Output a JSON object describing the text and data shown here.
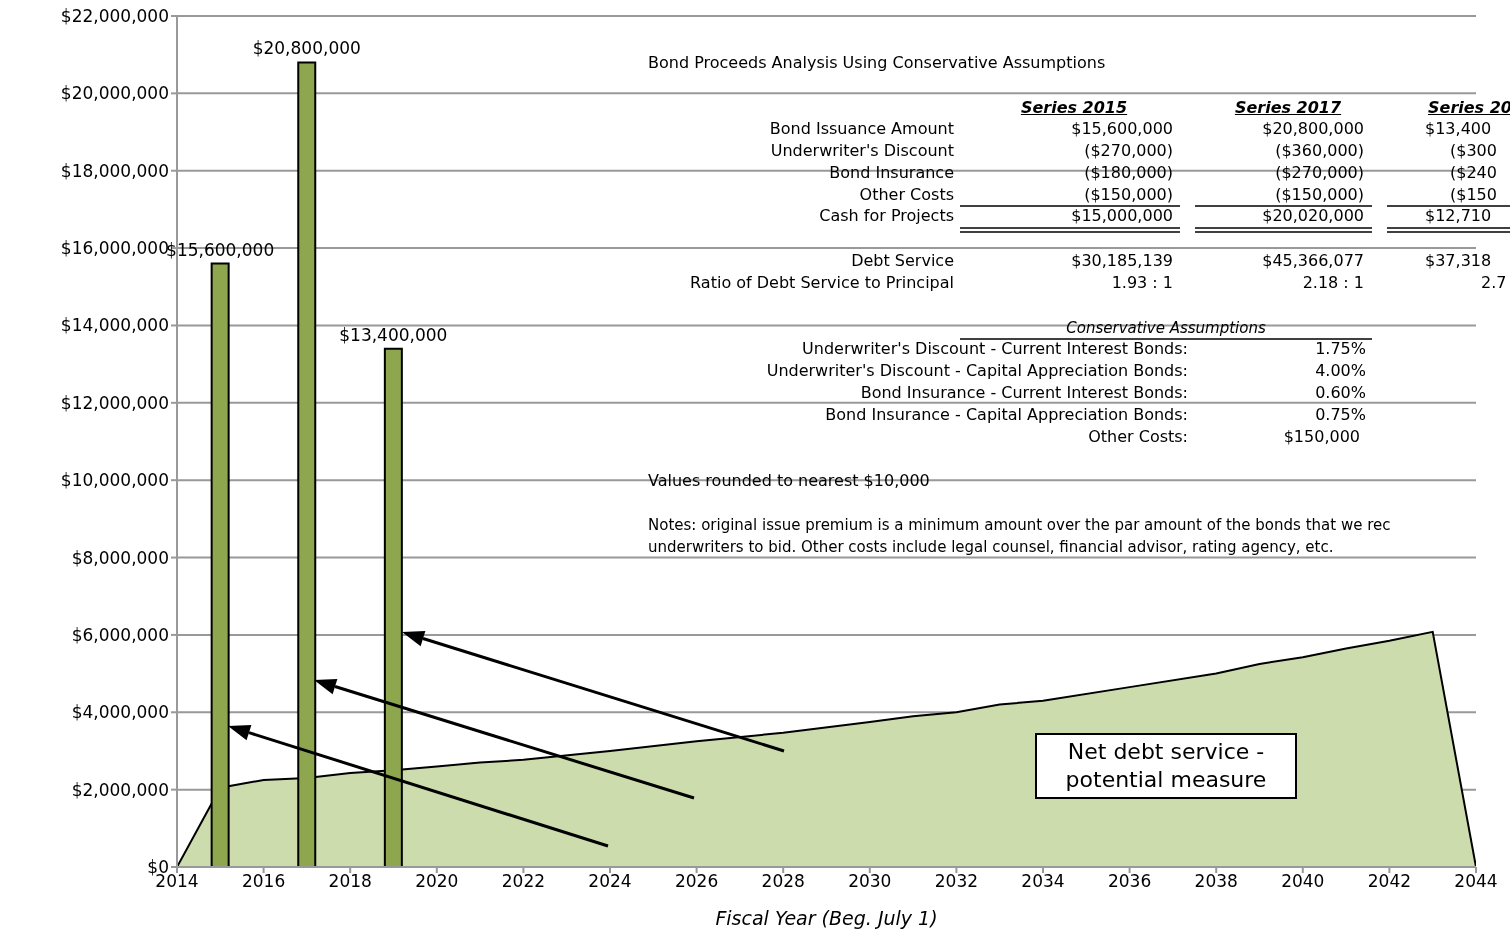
{
  "chart_data": {
    "type": "bar",
    "xlabel": "Fiscal Year (Beg. July 1)",
    "xlim": [
      2014,
      2044
    ],
    "xticks": [
      2014,
      2016,
      2018,
      2020,
      2022,
      2024,
      2026,
      2028,
      2030,
      2032,
      2034,
      2036,
      2038,
      2040,
      2042,
      2044
    ],
    "ylim": [
      0,
      22000000
    ],
    "yticks": [
      {
        "value": 0,
        "label": "$0"
      },
      {
        "value": 2000000,
        "label": "$2,000,000"
      },
      {
        "value": 4000000,
        "label": "$4,000,000"
      },
      {
        "value": 6000000,
        "label": "$6,000,000"
      },
      {
        "value": 8000000,
        "label": "$8,000,000"
      },
      {
        "value": 10000000,
        "label": "$10,000,000"
      },
      {
        "value": 12000000,
        "label": "$12,000,000"
      },
      {
        "value": 14000000,
        "label": "$14,000,000"
      },
      {
        "value": 16000000,
        "label": "$16,000,000"
      },
      {
        "value": 18000000,
        "label": "$18,000,000"
      },
      {
        "value": 20000000,
        "label": "$20,000,000"
      },
      {
        "value": 22000000,
        "label": "$22,000,000"
      }
    ],
    "grid": "y",
    "series": [
      {
        "type": "area",
        "color": "#cddcac",
        "x": [
          2014,
          2015,
          2016,
          2017,
          2018,
          2019,
          2020,
          2021,
          2022,
          2024,
          2026,
          2028,
          2030,
          2031,
          2032,
          2033,
          2034,
          2036,
          2038,
          2039,
          2040,
          2041,
          2042,
          2043,
          2044
        ],
        "values": [
          0,
          2050000,
          2250000,
          2300000,
          2430000,
          2500000,
          2600000,
          2700000,
          2770000,
          3000000,
          3250000,
          3470000,
          3750000,
          3900000,
          4000000,
          4200000,
          4300000,
          4650000,
          5000000,
          5250000,
          5420000,
          5650000,
          5850000,
          6080000,
          0
        ]
      },
      {
        "color": "#8ea64e",
        "x": [
          2015,
          2017,
          2019
        ],
        "values": [
          15600000,
          20800000,
          13400000
        ],
        "value_labels": [
          "$15,600,000",
          "$20,800,000",
          "$13,400,000"
        ]
      }
    ],
    "annotations": [
      "Bond Proceeds Analysis Using Conservative Assumptions",
      "Series 2015",
      "Series 2017",
      "Series 20",
      "Bond Issuance Amount",
      "$15,600,000",
      "$20,800,000",
      "$13,400",
      "Underwriter's Discount",
      "($270,000)",
      "($360,000)",
      "($300",
      "Bond Insurance",
      "($180,000)",
      "($270,000)",
      "($240",
      "Other Costs",
      "($150,000)",
      "($150,000)",
      "($150",
      "Cash for Projects",
      "$15,000,000",
      "$20,020,000",
      "$12,710",
      "Debt Service",
      "$30,185,139",
      "$45,366,077",
      "$37,318",
      "Ratio of Debt Service to Principal",
      "1.93 : 1",
      "2.18 : 1",
      "2.7",
      "Conservative Assumptions",
      "Underwriter's Discount - Current Interest Bonds:",
      "1.75%",
      "Underwriter's Discount - Capital Appreciation Bonds:",
      "4.00%",
      "Bond Insurance - Current Interest Bonds:",
      "0.60%",
      "Bond Insurance - Capital Appreciation Bonds:",
      "0.75%",
      "Other Costs:",
      "$150,000",
      "Values rounded to nearest $10,000",
      "Notes: original issue premium is a minimum amount over the par amount of the bonds that we rec",
      "underwriters to bid.  Other costs include legal counsel, financial advisor, rating agency, etc.",
      "Net debt service - potential measure"
    ]
  }
}
